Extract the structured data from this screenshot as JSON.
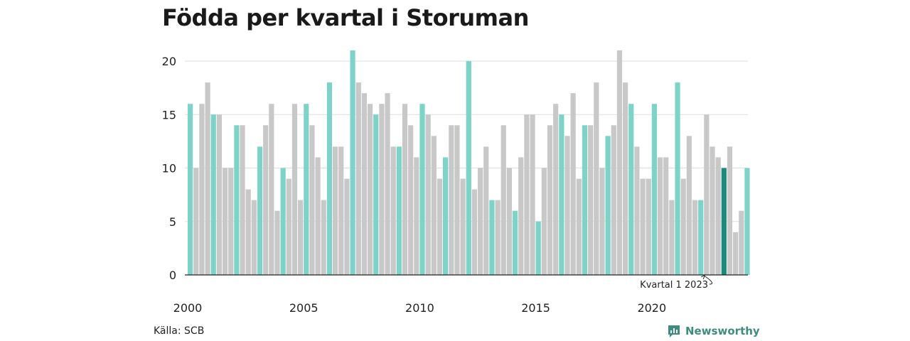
{
  "title": "Födda per kvartal i Storuman",
  "source": "Källa: SCB",
  "brand": {
    "name": "Newsworthy",
    "icon": "newsworthy-logo-icon"
  },
  "annotation": "Kvartal 1 2023",
  "colors": {
    "q1": "#7ed3c8",
    "other": "#c8c8c8",
    "highlight": "#1a8a7a",
    "grid": "#dddddd",
    "axis": "#222222",
    "brand": "#3e8c7d"
  },
  "chart_data": {
    "type": "bar",
    "start_year": 2000,
    "quarters_per_year": 4,
    "values": [
      16,
      10,
      16,
      18,
      15,
      15,
      10,
      10,
      14,
      14,
      8,
      7,
      12,
      14,
      16,
      6,
      10,
      9,
      16,
      7,
      16,
      14,
      11,
      7,
      18,
      12,
      12,
      9,
      21,
      18,
      17,
      16,
      15,
      16,
      17,
      12,
      12,
      16,
      14,
      11,
      16,
      15,
      13,
      9,
      11,
      14,
      14,
      9,
      20,
      8,
      10,
      12,
      7,
      7,
      14,
      10,
      6,
      11,
      15,
      15,
      5,
      10,
      14,
      16,
      15,
      13,
      17,
      9,
      14,
      14,
      18,
      10,
      13,
      14,
      21,
      18,
      16,
      12,
      9,
      9,
      16,
      11,
      11,
      7,
      18,
      9,
      13,
      7,
      7,
      15,
      12,
      11,
      10,
      12,
      4,
      6,
      10
    ],
    "highlight_index": 92,
    "ylim": [
      0,
      21
    ],
    "yticks": [
      0,
      5,
      10,
      15,
      20
    ],
    "xticks": [
      2000,
      2005,
      2010,
      2015,
      2020
    ],
    "grid": true,
    "xlabel": "",
    "ylabel": ""
  }
}
